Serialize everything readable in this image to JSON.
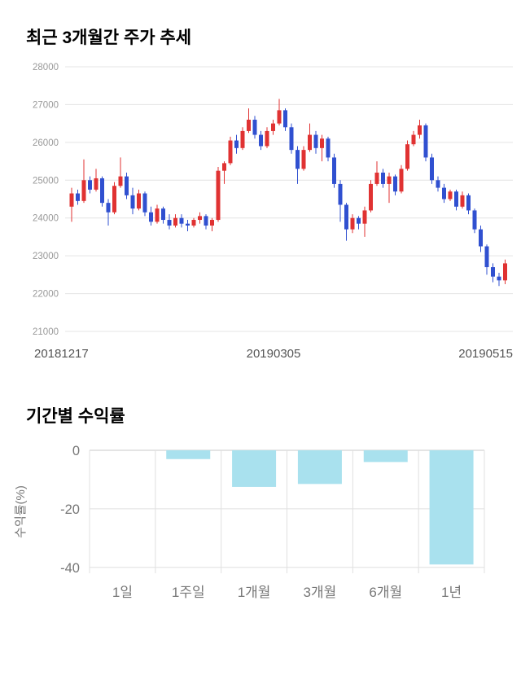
{
  "chart_data": [
    {
      "type": "candlestick",
      "title": "최근 3개월간 주가 추세",
      "y_ticks": [
        28000,
        27000,
        26000,
        25000,
        24000,
        23000,
        22000,
        21000
      ],
      "y_min": 21000,
      "y_max": 28000,
      "x_labels": [
        "20181217",
        "20190305",
        "20190515"
      ],
      "up_color": "#e03232",
      "down_color": "#3050d0",
      "grid": true,
      "candles": [
        [
          24300,
          24800,
          23900,
          24650
        ],
        [
          24650,
          24750,
          24350,
          24450
        ],
        [
          24450,
          25550,
          24400,
          25000
        ],
        [
          25000,
          25100,
          24650,
          24750
        ],
        [
          24750,
          25300,
          24700,
          25050
        ],
        [
          25050,
          25100,
          24300,
          24400
        ],
        [
          24400,
          24500,
          23800,
          24150
        ],
        [
          24150,
          24950,
          24100,
          24850
        ],
        [
          24850,
          25600,
          24800,
          25100
        ],
        [
          25100,
          25200,
          24500,
          24600
        ],
        [
          24600,
          24800,
          24100,
          24250
        ],
        [
          24250,
          24750,
          24200,
          24650
        ],
        [
          24650,
          24700,
          24050,
          24150
        ],
        [
          24150,
          24300,
          23800,
          23900
        ],
        [
          23900,
          24350,
          23850,
          24250
        ],
        [
          24250,
          24300,
          23850,
          23950
        ],
        [
          23950,
          24100,
          23700,
          23800
        ],
        [
          23800,
          24100,
          23750,
          24000
        ],
        [
          24000,
          24100,
          23750,
          23850
        ],
        [
          23850,
          23950,
          23650,
          23800
        ],
        [
          23800,
          24000,
          23750,
          23950
        ],
        [
          23950,
          24150,
          23850,
          24050
        ],
        [
          24050,
          24100,
          23700,
          23800
        ],
        [
          23800,
          24000,
          23650,
          23950
        ],
        [
          23950,
          25350,
          23900,
          25250
        ],
        [
          25250,
          25500,
          24900,
          25450
        ],
        [
          25450,
          26150,
          25400,
          26050
        ],
        [
          26050,
          26200,
          25700,
          25850
        ],
        [
          25850,
          26400,
          25800,
          26300
        ],
        [
          26300,
          26900,
          26250,
          26600
        ],
        [
          26600,
          26700,
          26100,
          26200
        ],
        [
          26200,
          26300,
          25800,
          25900
        ],
        [
          25900,
          26400,
          25850,
          26300
        ],
        [
          26300,
          26600,
          26200,
          26500
        ],
        [
          26500,
          27150,
          26450,
          26850
        ],
        [
          26850,
          26900,
          26300,
          26400
        ],
        [
          26400,
          26500,
          25700,
          25800
        ],
        [
          25800,
          25900,
          24900,
          25300
        ],
        [
          25300,
          25900,
          25250,
          25800
        ],
        [
          25800,
          26500,
          25750,
          26200
        ],
        [
          26200,
          26300,
          25700,
          25850
        ],
        [
          25850,
          26200,
          25500,
          26100
        ],
        [
          26100,
          26150,
          25500,
          25600
        ],
        [
          25600,
          25700,
          24800,
          24900
        ],
        [
          24900,
          25000,
          23900,
          24350
        ],
        [
          24350,
          24400,
          23400,
          23700
        ],
        [
          23700,
          24100,
          23600,
          24000
        ],
        [
          24000,
          24050,
          23700,
          23850
        ],
        [
          23850,
          24300,
          23500,
          24200
        ],
        [
          24200,
          25000,
          24150,
          24900
        ],
        [
          24900,
          25500,
          24850,
          25200
        ],
        [
          25200,
          25300,
          24800,
          24900
        ],
        [
          24900,
          25200,
          24400,
          25100
        ],
        [
          25100,
          25150,
          24600,
          24700
        ],
        [
          24700,
          25400,
          24650,
          25300
        ],
        [
          25300,
          26050,
          25250,
          25950
        ],
        [
          25950,
          26300,
          25900,
          26200
        ],
        [
          26200,
          26600,
          26100,
          26450
        ],
        [
          26450,
          26500,
          25500,
          25600
        ],
        [
          25600,
          25700,
          24900,
          25000
        ],
        [
          25000,
          25100,
          24700,
          24800
        ],
        [
          24800,
          24900,
          24400,
          24500
        ],
        [
          24500,
          24750,
          24450,
          24700
        ],
        [
          24700,
          24750,
          24200,
          24300
        ],
        [
          24300,
          24700,
          24250,
          24600
        ],
        [
          24600,
          24650,
          24100,
          24200
        ],
        [
          24200,
          24250,
          23600,
          23700
        ],
        [
          23700,
          23800,
          23100,
          23250
        ],
        [
          23250,
          23300,
          22500,
          22700
        ],
        [
          22700,
          22800,
          22300,
          22450
        ],
        [
          22450,
          22550,
          22200,
          22350
        ],
        [
          22350,
          22900,
          22250,
          22800
        ]
      ]
    },
    {
      "type": "bar",
      "title": "기간별 수익률",
      "ylabel": "수익률(%)",
      "y_ticks": [
        0,
        -20,
        -40
      ],
      "y_min": -42,
      "y_max": 0,
      "categories": [
        "1일",
        "1주일",
        "1개월",
        "3개월",
        "6개월",
        "1년"
      ],
      "values": [
        0,
        -3,
        -12.5,
        -11.5,
        -4,
        -39
      ],
      "bar_color": "#a9e1ee",
      "grid": true,
      "legend": "none"
    }
  ]
}
